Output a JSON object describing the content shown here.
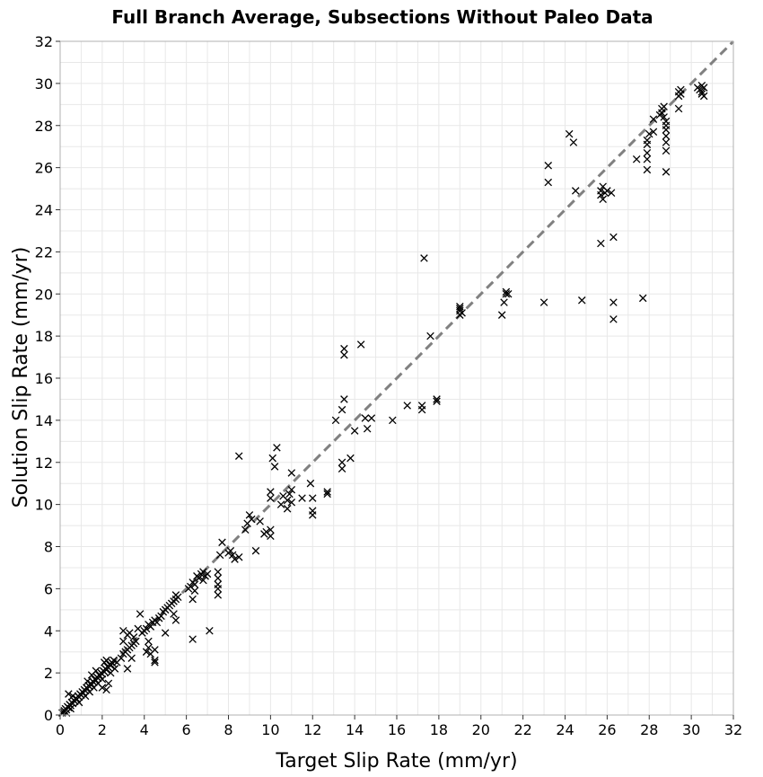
{
  "chart_data": {
    "type": "scatter",
    "title": "Full Branch Average, Subsections Without Paleo Data",
    "xlabel": "Target Slip Rate (mm/yr)",
    "ylabel": "Solution Slip Rate (mm/yr)",
    "xlim": [
      0,
      32
    ],
    "ylim": [
      0,
      32
    ],
    "xticks": [
      0,
      2,
      4,
      6,
      8,
      10,
      12,
      14,
      16,
      18,
      20,
      22,
      24,
      26,
      28,
      30,
      32
    ],
    "yticks": [
      0,
      2,
      4,
      6,
      8,
      10,
      12,
      14,
      16,
      18,
      20,
      22,
      24,
      26,
      28,
      30,
      32
    ],
    "grid": true,
    "reference_line": {
      "style": "dashed",
      "color": "#808080",
      "from": [
        0,
        0
      ],
      "to": [
        32,
        32
      ]
    },
    "marker": "x",
    "marker_color": "#000000",
    "points": [
      [
        0.1,
        0.1
      ],
      [
        0.15,
        0.15
      ],
      [
        0.2,
        0.2
      ],
      [
        0.25,
        0.3
      ],
      [
        0.3,
        0.25
      ],
      [
        0.35,
        0.4
      ],
      [
        0.4,
        0.35
      ],
      [
        0.45,
        0.5
      ],
      [
        0.5,
        0.45
      ],
      [
        0.55,
        0.6
      ],
      [
        0.6,
        0.55
      ],
      [
        0.65,
        0.7
      ],
      [
        0.7,
        0.65
      ],
      [
        0.75,
        0.8
      ],
      [
        0.8,
        0.75
      ],
      [
        0.85,
        0.9
      ],
      [
        0.9,
        0.85
      ],
      [
        0.95,
        1.0
      ],
      [
        1.0,
        0.95
      ],
      [
        1.05,
        1.1
      ],
      [
        1.1,
        1.05
      ],
      [
        1.15,
        1.2
      ],
      [
        1.2,
        1.15
      ],
      [
        1.25,
        1.3
      ],
      [
        1.3,
        1.25
      ],
      [
        1.35,
        1.4
      ],
      [
        1.4,
        1.35
      ],
      [
        1.45,
        1.5
      ],
      [
        1.5,
        1.45
      ],
      [
        1.55,
        1.6
      ],
      [
        1.6,
        1.55
      ],
      [
        1.65,
        1.7
      ],
      [
        1.7,
        1.65
      ],
      [
        1.75,
        1.8
      ],
      [
        1.8,
        1.75
      ],
      [
        1.85,
        1.9
      ],
      [
        1.9,
        1.85
      ],
      [
        1.95,
        2.0
      ],
      [
        2.0,
        1.95
      ],
      [
        2.05,
        2.1
      ],
      [
        2.1,
        2.05
      ],
      [
        2.15,
        2.2
      ],
      [
        2.2,
        2.15
      ],
      [
        2.25,
        2.3
      ],
      [
        2.3,
        2.25
      ],
      [
        2.35,
        2.4
      ],
      [
        2.4,
        2.35
      ],
      [
        2.45,
        2.5
      ],
      [
        2.5,
        2.45
      ],
      [
        2.55,
        2.6
      ],
      [
        0.3,
        0.1
      ],
      [
        0.5,
        0.3
      ],
      [
        0.6,
        0.9
      ],
      [
        0.4,
        1.0
      ],
      [
        0.9,
        0.6
      ],
      [
        1.2,
        0.9
      ],
      [
        1.4,
        1.1
      ],
      [
        1.6,
        1.3
      ],
      [
        1.8,
        1.5
      ],
      [
        2.0,
        1.7
      ],
      [
        2.0,
        1.3
      ],
      [
        2.2,
        1.2
      ],
      [
        2.3,
        1.5
      ],
      [
        1.5,
        1.9
      ],
      [
        1.3,
        1.6
      ],
      [
        1.7,
        2.1
      ],
      [
        2.1,
        2.5
      ],
      [
        2.4,
        2.0
      ],
      [
        2.6,
        2.2
      ],
      [
        2.2,
        2.6
      ],
      [
        2.7,
        2.5
      ],
      [
        2.9,
        2.7
      ],
      [
        3.0,
        2.9
      ],
      [
        3.1,
        3.0
      ],
      [
        3.2,
        3.1
      ],
      [
        3.3,
        3.2
      ],
      [
        3.4,
        3.3
      ],
      [
        3.5,
        3.4
      ],
      [
        3.0,
        3.5
      ],
      [
        3.2,
        3.8
      ],
      [
        3.0,
        4.0
      ],
      [
        3.3,
        3.9
      ],
      [
        3.4,
        2.7
      ],
      [
        3.2,
        2.2
      ],
      [
        3.5,
        3.7
      ],
      [
        3.6,
        3.5
      ],
      [
        3.7,
        4.1
      ],
      [
        3.8,
        4.8
      ],
      [
        3.9,
        3.9
      ],
      [
        4.0,
        4.0
      ],
      [
        4.1,
        4.1
      ],
      [
        4.2,
        3.2
      ],
      [
        4.2,
        3.5
      ],
      [
        4.3,
        2.9
      ],
      [
        4.1,
        3.0
      ],
      [
        4.2,
        4.3
      ],
      [
        4.3,
        4.2
      ],
      [
        4.4,
        4.4
      ],
      [
        4.5,
        4.5
      ],
      [
        4.5,
        2.6
      ],
      [
        4.5,
        2.5
      ],
      [
        4.5,
        3.1
      ],
      [
        4.6,
        4.4
      ],
      [
        4.7,
        4.6
      ],
      [
        4.8,
        4.7
      ],
      [
        4.9,
        4.9
      ],
      [
        5.0,
        5.0
      ],
      [
        5.1,
        5.1
      ],
      [
        5.2,
        5.2
      ],
      [
        5.0,
        3.9
      ],
      [
        5.3,
        5.3
      ],
      [
        5.4,
        5.4
      ],
      [
        5.5,
        5.5
      ],
      [
        5.5,
        4.5
      ],
      [
        5.4,
        4.8
      ],
      [
        5.5,
        5.7
      ],
      [
        5.6,
        5.6
      ],
      [
        6.1,
        6.0
      ],
      [
        6.2,
        6.1
      ],
      [
        6.3,
        6.3
      ],
      [
        6.4,
        6.2
      ],
      [
        6.3,
        5.5
      ],
      [
        6.4,
        5.9
      ],
      [
        6.3,
        3.6
      ],
      [
        6.5,
        6.6
      ],
      [
        6.6,
        6.5
      ],
      [
        6.7,
        6.7
      ],
      [
        6.8,
        6.8
      ],
      [
        6.8,
        6.4
      ],
      [
        6.9,
        6.6
      ],
      [
        7.0,
        6.7
      ],
      [
        7.1,
        4.0
      ],
      [
        7.5,
        6.8
      ],
      [
        7.5,
        6.5
      ],
      [
        7.5,
        6.2
      ],
      [
        7.5,
        6.0
      ],
      [
        7.5,
        5.7
      ],
      [
        7.6,
        7.6
      ],
      [
        7.7,
        8.2
      ],
      [
        8.0,
        7.7
      ],
      [
        8.1,
        7.8
      ],
      [
        8.2,
        7.6
      ],
      [
        8.3,
        7.4
      ],
      [
        8.5,
        7.5
      ],
      [
        8.5,
        12.3
      ],
      [
        8.8,
        8.8
      ],
      [
        8.9,
        9.1
      ],
      [
        9.0,
        9.5
      ],
      [
        9.1,
        9.3
      ],
      [
        9.3,
        7.8
      ],
      [
        9.5,
        9.2
      ],
      [
        9.7,
        8.6
      ],
      [
        9.8,
        8.7
      ],
      [
        10.0,
        8.8
      ],
      [
        10.0,
        8.5
      ],
      [
        10.0,
        10.6
      ],
      [
        10.0,
        10.3
      ],
      [
        10.1,
        12.2
      ],
      [
        10.2,
        11.8
      ],
      [
        10.3,
        12.7
      ],
      [
        10.5,
        10.0
      ],
      [
        10.6,
        10.4
      ],
      [
        10.8,
        9.8
      ],
      [
        10.8,
        10.2
      ],
      [
        10.9,
        10.5
      ],
      [
        11.0,
        10.7
      ],
      [
        11.0,
        11.5
      ],
      [
        11.0,
        10.1
      ],
      [
        11.5,
        10.3
      ],
      [
        11.9,
        11.0
      ],
      [
        12.0,
        10.3
      ],
      [
        12.0,
        9.7
      ],
      [
        12.0,
        9.5
      ],
      [
        12.7,
        10.6
      ],
      [
        12.7,
        10.5
      ],
      [
        13.1,
        14.0
      ],
      [
        13.4,
        12.0
      ],
      [
        13.4,
        11.7
      ],
      [
        13.4,
        14.5
      ],
      [
        13.5,
        15.0
      ],
      [
        13.5,
        17.1
      ],
      [
        13.5,
        17.4
      ],
      [
        13.8,
        12.2
      ],
      [
        14.0,
        13.5
      ],
      [
        14.3,
        17.6
      ],
      [
        14.5,
        14.1
      ],
      [
        14.6,
        13.6
      ],
      [
        14.8,
        14.1
      ],
      [
        15.8,
        14.0
      ],
      [
        16.5,
        14.7
      ],
      [
        17.2,
        14.7
      ],
      [
        17.2,
        14.5
      ],
      [
        17.3,
        21.7
      ],
      [
        17.6,
        18.0
      ],
      [
        17.9,
        15.0
      ],
      [
        17.9,
        14.9
      ],
      [
        19.0,
        19.0
      ],
      [
        19.0,
        19.2
      ],
      [
        19.0,
        19.3
      ],
      [
        19.1,
        19.1
      ],
      [
        19.0,
        19.4
      ],
      [
        21.0,
        19.0
      ],
      [
        21.1,
        19.6
      ],
      [
        21.2,
        20.0
      ],
      [
        21.2,
        20.1
      ],
      [
        21.3,
        20.0
      ],
      [
        23.0,
        19.6
      ],
      [
        23.2,
        25.3
      ],
      [
        23.2,
        26.1
      ],
      [
        24.2,
        27.6
      ],
      [
        24.4,
        27.2
      ],
      [
        24.5,
        24.9
      ],
      [
        24.8,
        19.7
      ],
      [
        25.7,
        24.9
      ],
      [
        25.7,
        24.7
      ],
      [
        25.8,
        24.5
      ],
      [
        25.8,
        25.1
      ],
      [
        25.9,
        24.8
      ],
      [
        26.0,
        24.9
      ],
      [
        26.2,
        24.8
      ],
      [
        25.7,
        22.4
      ],
      [
        26.3,
        22.7
      ],
      [
        26.3,
        19.6
      ],
      [
        26.3,
        18.8
      ],
      [
        27.4,
        26.4
      ],
      [
        27.7,
        19.8
      ],
      [
        27.9,
        27.3
      ],
      [
        27.9,
        27.1
      ],
      [
        27.9,
        26.7
      ],
      [
        27.9,
        26.4
      ],
      [
        27.9,
        25.9
      ],
      [
        28.0,
        27.6
      ],
      [
        28.2,
        27.7
      ],
      [
        28.2,
        28.3
      ],
      [
        28.5,
        28.5
      ],
      [
        28.6,
        28.6
      ],
      [
        28.6,
        28.8
      ],
      [
        28.7,
        28.4
      ],
      [
        28.7,
        28.9
      ],
      [
        28.8,
        28.2
      ],
      [
        28.8,
        28.0
      ],
      [
        28.8,
        27.8
      ],
      [
        28.8,
        27.5
      ],
      [
        28.8,
        27.2
      ],
      [
        28.8,
        26.8
      ],
      [
        28.8,
        25.8
      ],
      [
        29.4,
        29.4
      ],
      [
        29.4,
        29.6
      ],
      [
        29.4,
        28.8
      ],
      [
        29.5,
        29.5
      ],
      [
        29.5,
        29.7
      ],
      [
        30.3,
        29.8
      ],
      [
        30.4,
        29.7
      ],
      [
        30.5,
        29.6
      ],
      [
        30.5,
        29.9
      ],
      [
        30.5,
        29.5
      ],
      [
        30.6,
        29.8
      ],
      [
        30.6,
        29.4
      ]
    ]
  }
}
